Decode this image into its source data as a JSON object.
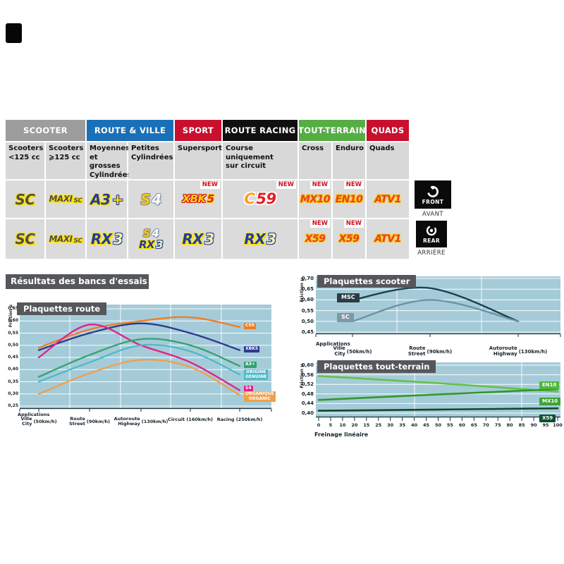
{
  "labels": {
    "new": "NEW"
  },
  "table": {
    "groups": [
      {
        "label": "SCOOTER",
        "color": "#9d9d9d"
      },
      {
        "label": "ROUTE & VILLE",
        "color": "#1a70b8"
      },
      {
        "label": "SPORT",
        "color": "#c8102e"
      },
      {
        "label": "ROUTE RACING",
        "color": "#101010"
      },
      {
        "label": "TOUT-TERRAIN",
        "color": "#55ae44"
      },
      {
        "label": "QUADS",
        "color": "#c8102e"
      }
    ],
    "subheaders": [
      "Scooters\n<125 cc",
      "Scooters\n⩾125 cc",
      "Moyennes\net grosses\nCylindrées",
      "Petites\nCylindrées",
      "Supersport",
      "Course\nuniquement\nsur circuit",
      "Cross",
      "Enduro",
      "Quads"
    ],
    "front_row": [
      {
        "logos": [
          [
            {
              "t": "SC",
              "c": "sc lg"
            }
          ]
        ]
      },
      {
        "logos": [
          [
            {
              "t": "MAXI",
              "c": "sc maxi"
            },
            {
              "t": "SC",
              "c": "sc maxisub"
            }
          ]
        ]
      },
      {
        "logos": [
          [
            {
              "t": "A3",
              "c": "navy lg"
            },
            {
              "t": "+",
              "c": "plus lg"
            }
          ]
        ]
      },
      {
        "logos": [
          [
            {
              "t": "S",
              "c": "gold lg"
            },
            {
              "t": "4",
              "c": "white4 lg"
            }
          ]
        ]
      },
      {
        "logos": [
          [
            {
              "t": "XBK",
              "c": "xbk md"
            },
            {
              "t": "5",
              "c": "five md"
            }
          ]
        ],
        "new": true
      },
      {
        "logos": [
          [
            {
              "t": "C",
              "c": "c59c xl"
            },
            {
              "t": "59",
              "c": "c59n xl"
            }
          ]
        ],
        "new": true
      },
      {
        "logos": [
          [
            {
              "t": "MX10",
              "c": "offr sm"
            }
          ]
        ],
        "new": true
      },
      {
        "logos": [
          [
            {
              "t": "EN10",
              "c": "offr sm"
            }
          ]
        ],
        "new": true
      },
      {
        "logos": [
          [
            {
              "t": "ATV1",
              "c": "offr sm"
            }
          ]
        ]
      }
    ],
    "rear_row": [
      {
        "logos": [
          [
            {
              "t": "SC",
              "c": "sc lg"
            }
          ]
        ]
      },
      {
        "logos": [
          [
            {
              "t": "MAXI",
              "c": "sc maxi"
            },
            {
              "t": "SC",
              "c": "sc maxisub"
            }
          ]
        ]
      },
      {
        "logos": [
          [
            {
              "t": "RX",
              "c": "navy lg"
            },
            {
              "t": "3",
              "c": "three lg"
            }
          ]
        ]
      },
      {
        "logos": [
          [
            {
              "t": "S",
              "c": "gold md"
            },
            {
              "t": "4",
              "c": "white4 md"
            }
          ],
          [
            {
              "t": "RX",
              "c": "navy md"
            },
            {
              "t": "3",
              "c": "three md"
            }
          ]
        ]
      },
      {
        "logos": [
          [
            {
              "t": "RX",
              "c": "navy lg"
            },
            {
              "t": "3",
              "c": "three lg"
            }
          ]
        ]
      },
      {
        "logos": [
          [
            {
              "t": "RX",
              "c": "navy lg"
            },
            {
              "t": "3",
              "c": "three lg"
            }
          ]
        ]
      },
      {
        "logos": [
          [
            {
              "t": "X59",
              "c": "offr sm"
            }
          ]
        ],
        "new": true
      },
      {
        "logos": [
          [
            {
              "t": "X59",
              "c": "offr sm"
            }
          ]
        ],
        "new": true
      },
      {
        "logos": [
          [
            {
              "t": "ATV1",
              "c": "offr sm"
            }
          ]
        ]
      }
    ]
  },
  "badges": {
    "front": {
      "label": "FRONT",
      "sub": "AVANT"
    },
    "rear": {
      "label": "REAR",
      "sub": "ARRIÈRE"
    }
  },
  "results_title": "Résultats des bancs d'essais",
  "chart_data": [
    {
      "type": "line",
      "title": "Plaquettes route",
      "ylabel": "Friction µ",
      "ylim": [
        0.25,
        0.65
      ],
      "yticks": [
        "0,65",
        "0,60",
        "0,55",
        "0,50",
        "0,45",
        "0,40",
        "0,35",
        "0,30",
        "0,25"
      ],
      "applications_label": "Applications",
      "xlabels": [
        {
          "fr": "Ville",
          "en": "City",
          "speed": "(50km/h)"
        },
        {
          "fr": "Route",
          "en": "Street",
          "speed": "(90km/h)"
        },
        {
          "fr": "Autoroute",
          "en": "Highway",
          "speed": "(130km/h)"
        },
        {
          "fr": "Circuit",
          "en": "",
          "speed": "(160km/h)"
        },
        {
          "fr": "Racing",
          "en": "",
          "speed": "(250km/h)"
        }
      ],
      "grid": true,
      "legend_position": "right-of-lines",
      "series": [
        {
          "name": "C59",
          "color": "#ee7d22",
          "label_lines": [
            "C59"
          ],
          "values": [
            0.49,
            0.565,
            0.6,
            0.615,
            0.575
          ]
        },
        {
          "name": "XBK5",
          "color": "#2b3990",
          "label_lines": [
            "XBK5"
          ],
          "values": [
            0.48,
            0.55,
            0.59,
            0.55,
            0.48
          ]
        },
        {
          "name": "S4",
          "color": "#e0218a",
          "label_lines": [
            "S4"
          ],
          "values": [
            0.45,
            0.585,
            0.5,
            0.43,
            0.315
          ]
        },
        {
          "name": "A3+",
          "color": "#35a26d",
          "label_lines": [
            "A3+"
          ],
          "values": [
            0.37,
            0.46,
            0.525,
            0.5,
            0.415
          ]
        },
        {
          "name": "ORIGINE / GENUINE",
          "color": "#4cbac8",
          "label_lines": [
            "ORIGINE",
            "GENUINE"
          ],
          "values": [
            0.35,
            0.43,
            0.5,
            0.475,
            0.38
          ]
        },
        {
          "name": "ORGANIQUE / ORGANIC",
          "color": "#f0a04a",
          "label_lines": [
            "ORGANIQUE",
            "ORGANIC"
          ],
          "values": [
            0.3,
            0.385,
            0.44,
            0.41,
            0.295
          ]
        }
      ]
    },
    {
      "type": "line",
      "title": "Plaquettes scooter",
      "ylabel": "Friction µ",
      "ylim": [
        0.45,
        0.7
      ],
      "yticks": [
        "0,70",
        "0,65",
        "0,60",
        "0,55",
        "0,50",
        "0,45"
      ],
      "applications_label": "Applications",
      "xlabels": [
        {
          "fr": "Ville",
          "en": "City",
          "speed": "(50km/h)"
        },
        {
          "fr": "Route",
          "en": "Street",
          "speed": "(90km/h)"
        },
        {
          "fr": "Autoroute",
          "en": "Highway",
          "speed": "(130km/h)"
        }
      ],
      "grid": true,
      "legend_position": "left-of-lines",
      "series": [
        {
          "name": "MSC",
          "color": "#1d4050",
          "label_bg": "#2a3b45",
          "label_lines": [
            "MSC"
          ],
          "values": [
            0.6,
            0.655,
            0.5
          ]
        },
        {
          "name": "SC",
          "color": "#6a95a4",
          "label_bg": "#7d99a5",
          "label_lines": [
            "SC"
          ],
          "values": [
            0.5,
            0.6,
            0.5
          ]
        }
      ]
    },
    {
      "type": "line",
      "title": "Plaquettes tout-terrain",
      "ylabel": "Friction µ",
      "ylim": [
        0.4,
        0.6
      ],
      "yticks": [
        "0,60",
        "0,56",
        "0,52",
        "0,48",
        "0,44",
        "0,40"
      ],
      "xlabel": "Freinage linéaire",
      "xlim": [
        0,
        100
      ],
      "xticks": [
        "0",
        "5",
        "10",
        "20",
        "15",
        "25",
        "30",
        "35",
        "40",
        "45",
        "50",
        "55",
        "60",
        "65",
        "70",
        "75",
        "80",
        "85",
        "90",
        "95",
        "100"
      ],
      "grid": true,
      "legend_position": "right-of-lines",
      "series": [
        {
          "name": "EN10",
          "color": "#64c24a",
          "label_bg": "#4fb83a",
          "label_lines": [
            "EN10"
          ],
          "values": [
            [
              0,
              0.555
            ],
            [
              50,
              0.525
            ],
            [
              100,
              0.49
            ]
          ]
        },
        {
          "name": "MX10",
          "color": "#2f9929",
          "label_bg": "#3da334",
          "label_lines": [
            "MX10"
          ],
          "values": [
            [
              0,
              0.455
            ],
            [
              50,
              0.478
            ],
            [
              100,
              0.5
            ]
          ]
        },
        {
          "name": "X59",
          "color": "#0d4a2c",
          "label_bg": "#0e4f30",
          "label_lines": [
            "X59"
          ],
          "values": [
            [
              0,
              0.41
            ],
            [
              50,
              0.415
            ],
            [
              100,
              0.42
            ]
          ]
        }
      ]
    }
  ]
}
